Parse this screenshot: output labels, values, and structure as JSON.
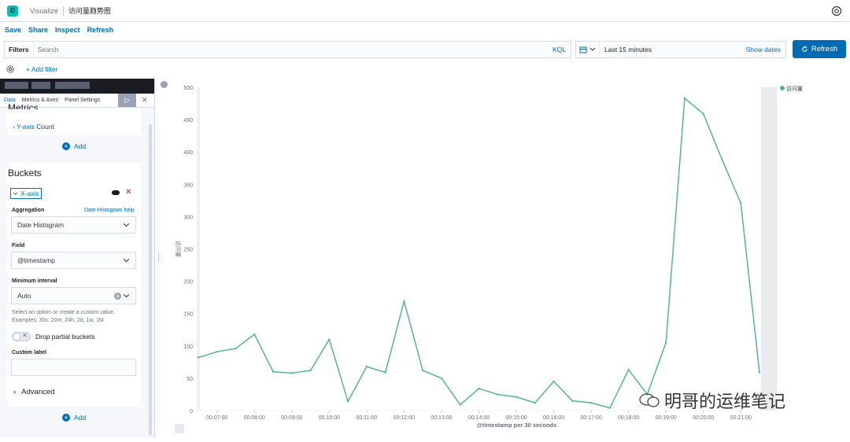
{
  "app": {
    "title": "Visualize",
    "page": "访问量趋势图",
    "logo_letter": "D"
  },
  "toolbar": {
    "save": "Save",
    "share": "Share",
    "inspect": "Inspect",
    "refresh": "Refresh"
  },
  "query": {
    "filters_label": "Filters",
    "search_placeholder": "Search",
    "kql": "KQL"
  },
  "date": {
    "range": "Last 15 minutes",
    "show_dates": "Show dates",
    "refresh_btn": "Refresh"
  },
  "filterbar": {
    "add_filter": "+ Add filter"
  },
  "sidebar": {
    "tabs": [
      "Data",
      "Metrics & Axes",
      "Panel Settings"
    ],
    "metrics_title": "Metrics",
    "metric_item": {
      "prefix": "Y-axis",
      "label": "Count"
    },
    "add": "Add",
    "buckets_title": "Buckets",
    "xaxis": "X-axis",
    "aggregation_label": "Aggregation",
    "aggregation_help": "Date Histogram help",
    "aggregation_value": "Date Histogram",
    "field_label": "Field",
    "field_value": "@timestamp",
    "interval_label": "Minimum interval",
    "interval_value": "Auto",
    "interval_hint": "Select an option or create a custom value. Examples: 30s, 20m, 24h, 2d, 1w, 1M",
    "drop_partial": "Drop partial buckets",
    "custom_label": "Custom label",
    "advanced": "Advanced",
    "add2": "Add"
  },
  "watermark": "明哥的运维笔记",
  "chart_data": {
    "type": "line",
    "title": "",
    "xlabel": "@timestamp per 30 seconds",
    "ylabel": "访问量",
    "ylim": [
      0,
      500
    ],
    "yticks": [
      0,
      50,
      100,
      150,
      200,
      250,
      300,
      350,
      400,
      450,
      500
    ],
    "grid": false,
    "legend": "top-right",
    "color": "#54b399",
    "x_ticks": [
      "00:07:00",
      "00:08:00",
      "00:09:00",
      "00:10:00",
      "00:11:00",
      "00:12:00",
      "00:13:00",
      "00:14:00",
      "00:15:00",
      "00:16:00",
      "00:17:00",
      "00:18:00",
      "00:19:00",
      "00:20:00",
      "00:21:00"
    ],
    "series": [
      {
        "name": "访问量",
        "x": [
          "00:06:30",
          "00:07:00",
          "00:07:30",
          "00:08:00",
          "00:08:30",
          "00:09:00",
          "00:09:30",
          "00:10:00",
          "00:10:30",
          "00:11:00",
          "00:11:30",
          "00:12:00",
          "00:12:30",
          "00:13:00",
          "00:13:30",
          "00:14:00",
          "00:14:30",
          "00:15:00",
          "00:15:30",
          "00:16:00",
          "00:16:30",
          "00:17:00",
          "00:17:30",
          "00:18:00",
          "00:18:30",
          "00:19:00",
          "00:19:30",
          "00:20:00",
          "00:20:30",
          "00:21:00",
          "00:21:30"
        ],
        "values": [
          82,
          91,
          96,
          118,
          60,
          58,
          62,
          110,
          14,
          68,
          59,
          169,
          62,
          50,
          9,
          34,
          25,
          21,
          12,
          45,
          15,
          12,
          4,
          63,
          25,
          105,
          483,
          459,
          388,
          321,
          59
        ]
      }
    ]
  }
}
